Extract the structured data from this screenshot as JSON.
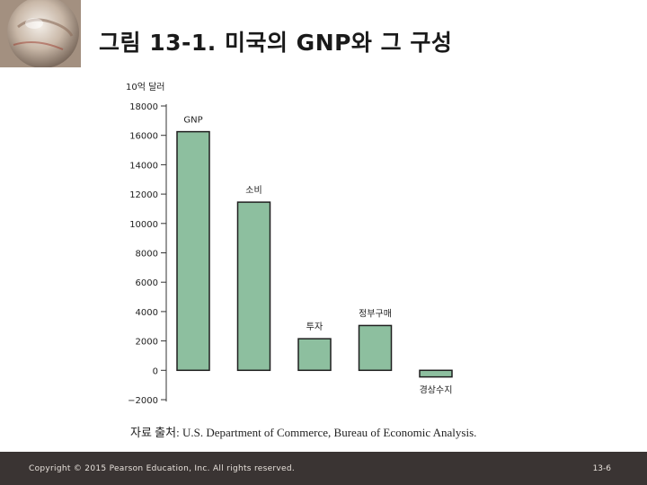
{
  "slide": {
    "title": "그림 13-1. 미국의 GNP와 그 구성",
    "source": "자료 출처: U.S. Department of Commerce, Bureau of Economic Analysis.",
    "copyright": "Copyright © 2015 Pearson Education, Inc. All rights reserved.",
    "page_number": "13-6"
  },
  "colors": {
    "bar_fill": "#8dbf9f",
    "bar_stroke": "#1f1f1f",
    "footer_bg": "#3a3433"
  },
  "chart_data": {
    "type": "bar",
    "ylabel": "10억 달러",
    "ylim": [
      -2000,
      18000
    ],
    "yticks": [
      18000,
      16000,
      14000,
      12000,
      10000,
      8000,
      6000,
      4000,
      2000,
      0,
      -2000
    ],
    "ytick_labels": [
      "18000",
      "16000",
      "14000",
      "12000",
      "10000",
      "8000",
      "6000",
      "4000",
      "2000",
      "0",
      "−2000"
    ],
    "categories": [
      "GNP",
      "소비",
      "투자",
      "정부구매",
      "경상수지"
    ],
    "values": [
      16250,
      11450,
      2150,
      3050,
      -450
    ],
    "grid": false,
    "legend": "none"
  }
}
